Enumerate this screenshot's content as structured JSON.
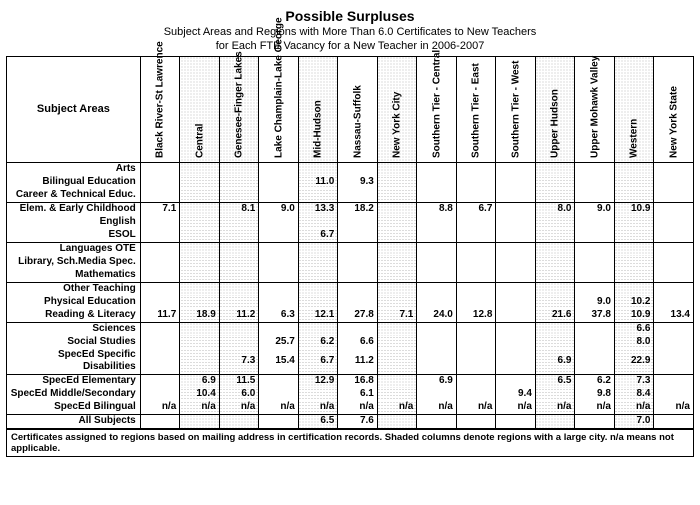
{
  "title": "Possible Surpluses",
  "subtitle_line1": "Subject Areas and Regions with More Than 6.0 Certificates to New Teachers",
  "subtitle_line2": "for Each FTE Vacancy for a New Teacher in 2006-2007",
  "subject_header": "Subject Areas",
  "footnote": "Certificates assigned to regions based on mailing address in certification records.    Shaded columns denote regions with a large city.  n/a means not applicable.",
  "regions": [
    {
      "label": "Black River-St Lawrence",
      "shaded": false
    },
    {
      "label": "Central",
      "shaded": true
    },
    {
      "label": "Genesee-Finger Lakes",
      "shaded": true
    },
    {
      "label": "Lake Champlain-Lake George",
      "shaded": false
    },
    {
      "label": "Mid-Hudson",
      "shaded": true
    },
    {
      "label": "Nassau-Suffolk",
      "shaded": false
    },
    {
      "label": "New York City",
      "shaded": true
    },
    {
      "label": "Southern Tier - Central",
      "shaded": false
    },
    {
      "label": "Southern Tier - East",
      "shaded": false
    },
    {
      "label": "Southern Tier - West",
      "shaded": false
    },
    {
      "label": "Upper Hudson",
      "shaded": true
    },
    {
      "label": "Upper Mohawk Valley",
      "shaded": false
    },
    {
      "label": "Western",
      "shaded": true
    },
    {
      "label": "New York State",
      "shaded": false
    }
  ],
  "blocks": [
    [
      {
        "label": "Arts",
        "vals": [
          "",
          "",
          "",
          "",
          "",
          "",
          "",
          "",
          "",
          "",
          "",
          "",
          "",
          ""
        ]
      },
      {
        "label": "Bilingual Education",
        "vals": [
          "",
          "",
          "",
          "",
          "11.0",
          "9.3",
          "",
          "",
          "",
          "",
          "",
          "",
          "",
          ""
        ]
      },
      {
        "label": "Career & Technical Educ.",
        "vals": [
          "",
          "",
          "",
          "",
          "",
          "",
          "",
          "",
          "",
          "",
          "",
          "",
          "",
          ""
        ]
      }
    ],
    [
      {
        "label": "Elem. & Early Childhood",
        "vals": [
          "7.1",
          "",
          "8.1",
          "9.0",
          "13.3",
          "18.2",
          "",
          "8.8",
          "6.7",
          "",
          "8.0",
          "9.0",
          "10.9",
          ""
        ]
      },
      {
        "label": "English",
        "vals": [
          "",
          "",
          "",
          "",
          "",
          "",
          "",
          "",
          "",
          "",
          "",
          "",
          "",
          ""
        ]
      },
      {
        "label": "ESOL",
        "vals": [
          "",
          "",
          "",
          "",
          "6.7",
          "",
          "",
          "",
          "",
          "",
          "",
          "",
          "",
          ""
        ]
      }
    ],
    [
      {
        "label": "Languages OTE",
        "vals": [
          "",
          "",
          "",
          "",
          "",
          "",
          "",
          "",
          "",
          "",
          "",
          "",
          "",
          ""
        ]
      },
      {
        "label": "Library, Sch.Media Spec.",
        "vals": [
          "",
          "",
          "",
          "",
          "",
          "",
          "",
          "",
          "",
          "",
          "",
          "",
          "",
          ""
        ]
      },
      {
        "label": "Mathematics",
        "vals": [
          "",
          "",
          "",
          "",
          "",
          "",
          "",
          "",
          "",
          "",
          "",
          "",
          "",
          ""
        ]
      }
    ],
    [
      {
        "label": "Other Teaching",
        "vals": [
          "",
          "",
          "",
          "",
          "",
          "",
          "",
          "",
          "",
          "",
          "",
          "",
          "",
          ""
        ]
      },
      {
        "label": "Physical Education",
        "vals": [
          "",
          "",
          "",
          "",
          "",
          "",
          "",
          "",
          "",
          "",
          "",
          "9.0",
          "10.2",
          ""
        ]
      },
      {
        "label": "Reading & Literacy",
        "vals": [
          "11.7",
          "18.9",
          "11.2",
          "6.3",
          "12.1",
          "27.8",
          "7.1",
          "24.0",
          "12.8",
          "",
          "21.6",
          "37.8",
          "10.9",
          "13.4"
        ]
      }
    ],
    [
      {
        "label": "Sciences",
        "vals": [
          "",
          "",
          "",
          "",
          "",
          "",
          "",
          "",
          "",
          "",
          "",
          "",
          "6.6",
          ""
        ]
      },
      {
        "label": "Social Studies",
        "vals": [
          "",
          "",
          "",
          "25.7",
          "6.2",
          "6.6",
          "",
          "",
          "",
          "",
          "",
          "",
          "8.0",
          ""
        ]
      },
      {
        "label": "SpecEd Specific Disabilities",
        "vals": [
          "",
          "",
          "7.3",
          "15.4",
          "6.7",
          "11.2",
          "",
          "",
          "",
          "",
          "6.9",
          "",
          "22.9",
          ""
        ]
      }
    ],
    [
      {
        "label": "SpecEd Elementary",
        "vals": [
          "",
          "6.9",
          "11.5",
          "",
          "12.9",
          "16.8",
          "",
          "6.9",
          "",
          "",
          "6.5",
          "6.2",
          "7.3",
          ""
        ]
      },
      {
        "label": "SpecEd Middle/Secondary",
        "vals": [
          "",
          "10.4",
          "6.0",
          "",
          "",
          "6.1",
          "",
          "",
          "",
          "9.4",
          "",
          "9.8",
          "8.4",
          ""
        ]
      },
      {
        "label": "SpecEd Bilingual",
        "vals": [
          "n/a",
          "n/a",
          "n/a",
          "n/a",
          "n/a",
          "n/a",
          "n/a",
          "n/a",
          "n/a",
          "n/a",
          "n/a",
          "n/a",
          "n/a",
          "n/a"
        ]
      }
    ],
    [
      {
        "label": "All Subjects",
        "vals": [
          "",
          "",
          "",
          "",
          "6.5",
          "7.6",
          "",
          "",
          "",
          "",
          "",
          "",
          "7.0",
          ""
        ]
      }
    ]
  ]
}
